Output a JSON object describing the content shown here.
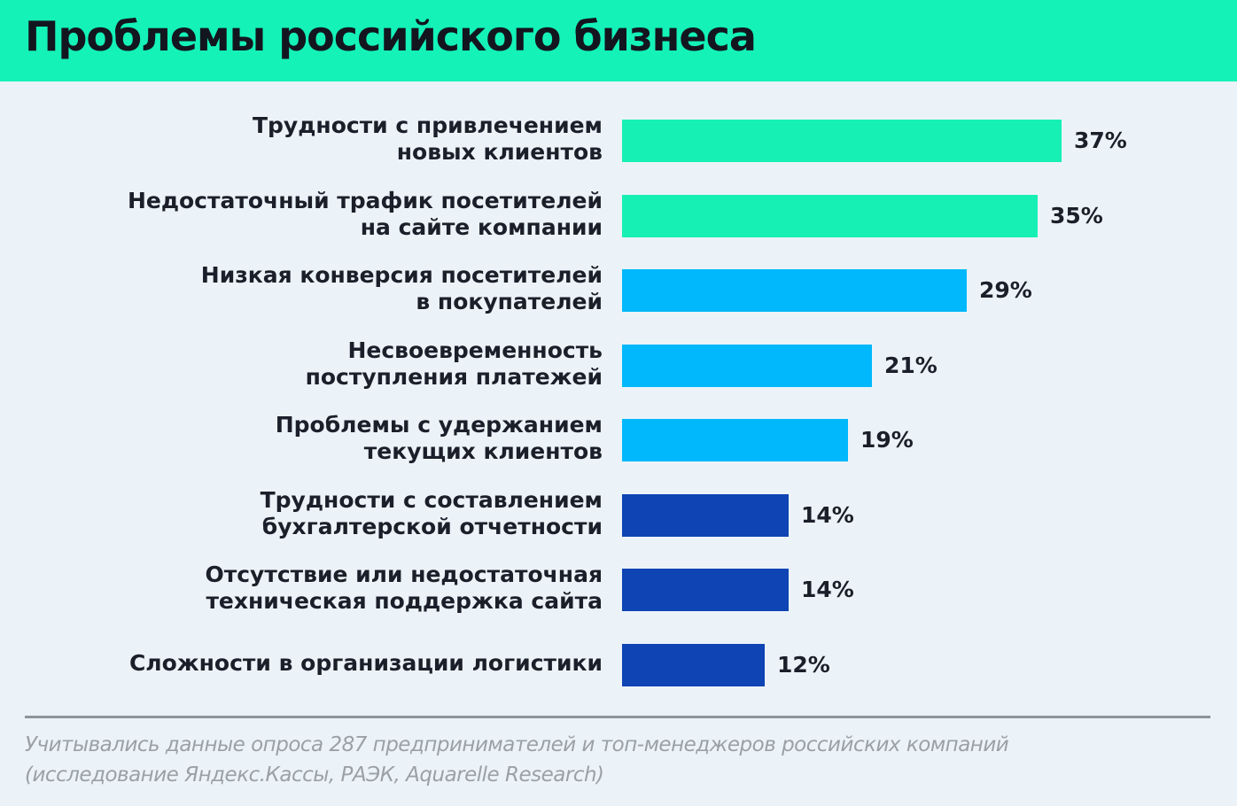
{
  "title": "Проблемы российского бизнеса",
  "colors": {
    "header_bg": "#14f2b8",
    "background": "#ebf3f8",
    "teal": "#16f0b4",
    "light_blue": "#00b8fb",
    "dark_blue": "#0e44b3"
  },
  "chart_data": {
    "type": "bar",
    "orientation": "horizontal",
    "title": "Проблемы российского бизнеса",
    "categories": [
      [
        "Трудности с привлечением",
        "новых клиентов"
      ],
      [
        "Недостаточный трафик посетителей",
        "на сайте компании"
      ],
      [
        "Низкая конверсия посетителей",
        "в покупателей"
      ],
      [
        "Несвоевременность",
        "поступления платежей"
      ],
      [
        "Проблемы с удержанием",
        "текущих клиентов"
      ],
      [
        "Трудности с составлением",
        "бухгалтерской отчетности"
      ],
      [
        "Отсутствие или недостаточная",
        "техническая поддержка сайта"
      ],
      [
        "Сложности в организации логистики"
      ]
    ],
    "values": [
      37,
      35,
      29,
      21,
      19,
      14,
      14,
      12
    ],
    "value_labels": [
      "37%",
      "35%",
      "29%",
      "21%",
      "19%",
      "14%",
      "14%",
      "12%"
    ],
    "bar_colors": [
      "#16f0b4",
      "#16f0b4",
      "#00b8fb",
      "#00b8fb",
      "#00b8fb",
      "#0e44b3",
      "#0e44b3",
      "#0e44b3"
    ],
    "xlim": [
      0,
      37
    ],
    "grid": false
  },
  "footnote": {
    "line1": "Учитывались данные опроса 287 предпринимателей и топ-менеджеров российских компаний",
    "line2": "(исследование Яндекс.Кассы, РАЭК, Aquarelle Research)"
  }
}
